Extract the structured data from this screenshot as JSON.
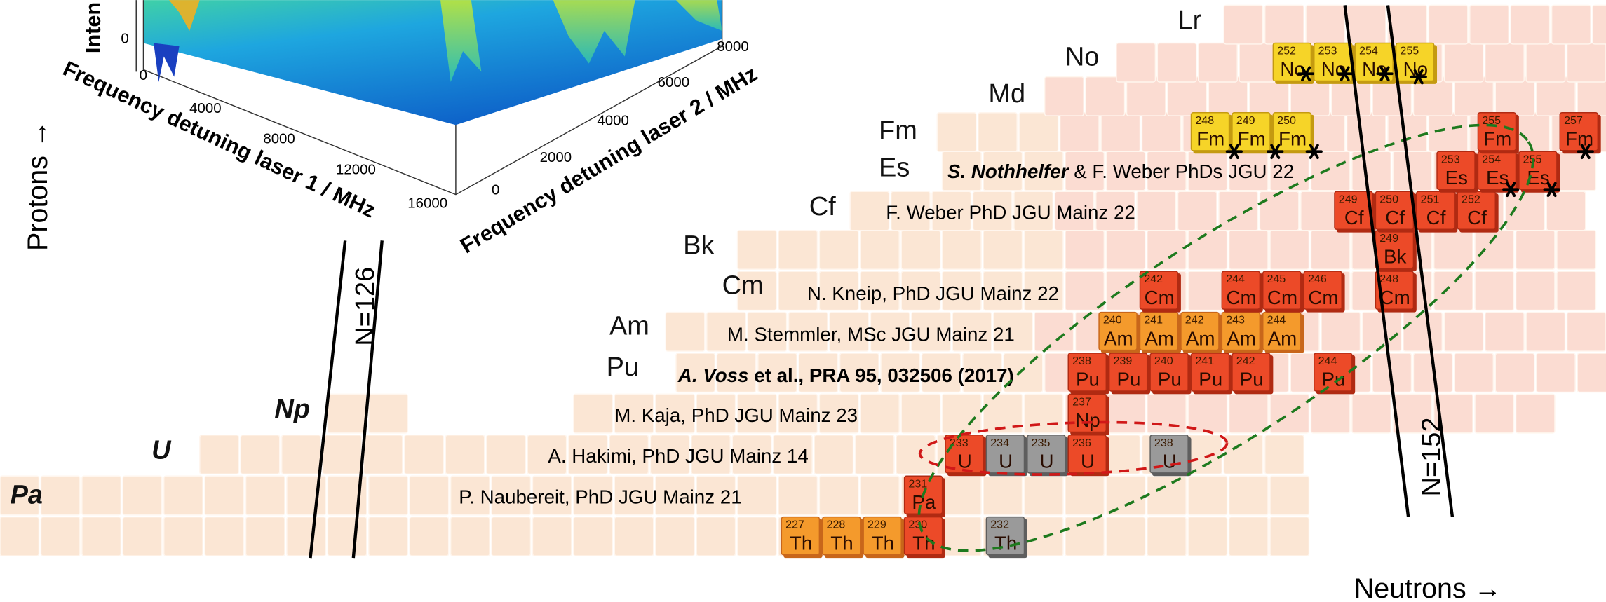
{
  "plot3d": {
    "z_axis_label": "Inten",
    "z_tick": "0",
    "x_axis_label": "Frequency detuning laser 1 / MHz",
    "x_ticks": [
      "0",
      "4000",
      "8000",
      "12000",
      "16000"
    ],
    "y_axis_label": "Frequency detuning laser 2 / MHz",
    "y_ticks": [
      "0",
      "2000",
      "4000",
      "6000",
      "8000"
    ]
  },
  "axes": {
    "protons": "Protons →",
    "neutrons": "Neutrons →"
  },
  "magic_numbers": [
    "N=126",
    "N=152"
  ],
  "elements": [
    "Lr",
    "No",
    "Md",
    "Fm",
    "Es",
    "Cf",
    "Bk",
    "Cm",
    "Am",
    "Pu",
    "Np",
    "U",
    "Pa"
  ],
  "nuclides": [
    {
      "mass": "227",
      "symbol": "Th"
    },
    {
      "mass": "228",
      "symbol": "Th"
    },
    {
      "mass": "229",
      "symbol": "Th"
    },
    {
      "mass": "230",
      "symbol": "Th"
    },
    {
      "mass": "232",
      "symbol": "Th"
    },
    {
      "mass": "231",
      "symbol": "Pa"
    },
    {
      "mass": "233",
      "symbol": "U"
    },
    {
      "mass": "234",
      "symbol": "U"
    },
    {
      "mass": "235",
      "symbol": "U"
    },
    {
      "mass": "236",
      "symbol": "U"
    },
    {
      "mass": "238",
      "symbol": "U"
    },
    {
      "mass": "237",
      "symbol": "Np"
    },
    {
      "mass": "238",
      "symbol": "Pu"
    },
    {
      "mass": "239",
      "symbol": "Pu"
    },
    {
      "mass": "240",
      "symbol": "Pu"
    },
    {
      "mass": "241",
      "symbol": "Pu"
    },
    {
      "mass": "242",
      "symbol": "Pu"
    },
    {
      "mass": "244",
      "symbol": "Pu"
    },
    {
      "mass": "240",
      "symbol": "Am"
    },
    {
      "mass": "241",
      "symbol": "Am"
    },
    {
      "mass": "242",
      "symbol": "Am"
    },
    {
      "mass": "243",
      "symbol": "Am"
    },
    {
      "mass": "244",
      "symbol": "Am"
    },
    {
      "mass": "242",
      "symbol": "Cm"
    },
    {
      "mass": "244",
      "symbol": "Cm"
    },
    {
      "mass": "245",
      "symbol": "Cm"
    },
    {
      "mass": "246",
      "symbol": "Cm"
    },
    {
      "mass": "248",
      "symbol": "Cm"
    },
    {
      "mass": "249",
      "symbol": "Bk"
    },
    {
      "mass": "249",
      "symbol": "Cf"
    },
    {
      "mass": "250",
      "symbol": "Cf"
    },
    {
      "mass": "251",
      "symbol": "Cf"
    },
    {
      "mass": "252",
      "symbol": "Cf"
    },
    {
      "mass": "253",
      "symbol": "Es"
    },
    {
      "mass": "254",
      "symbol": "Es"
    },
    {
      "mass": "255",
      "symbol": "Es"
    },
    {
      "mass": "248",
      "symbol": "Fm"
    },
    {
      "mass": "249",
      "symbol": "Fm"
    },
    {
      "mass": "250",
      "symbol": "Fm"
    },
    {
      "mass": "255",
      "symbol": "Fm"
    },
    {
      "mass": "257",
      "symbol": "Fm"
    },
    {
      "mass": "252",
      "symbol": "No"
    },
    {
      "mass": "253",
      "symbol": "No"
    },
    {
      "mass": "254",
      "symbol": "No"
    },
    {
      "mass": "255",
      "symbol": "No"
    }
  ],
  "theses": [
    {
      "parts": [
        {
          "text": "S. Nothhelfer",
          "style": "bold-italic"
        },
        {
          "text": " & F. Weber PhDs JGU 22",
          "style": "normal"
        }
      ]
    },
    {
      "parts": [
        {
          "text": "F. Weber PhD JGU Mainz 22",
          "style": "normal"
        }
      ]
    },
    {
      "parts": [
        {
          "text": "N. Kneip, PhD JGU Mainz 22",
          "style": "normal"
        }
      ]
    },
    {
      "parts": [
        {
          "text": "M. Stemmler, MSc JGU Mainz 21",
          "style": "normal"
        }
      ]
    },
    {
      "parts": [
        {
          "text": "A. Voss",
          "style": "bold-italic"
        },
        {
          "text": " et al., PRA 95, 032506 (2017)",
          "style": "bold"
        }
      ]
    },
    {
      "parts": [
        {
          "text": "M. Kaja, PhD JGU Mainz 23",
          "style": "normal"
        }
      ]
    },
    {
      "parts": [
        {
          "text": "A. Hakimi, PhD JGU Mainz 14",
          "style": "normal"
        }
      ]
    },
    {
      "parts": [
        {
          "text": "P. Naubereit, PhD JGU Mainz 21",
          "style": "normal"
        }
      ]
    }
  ]
}
